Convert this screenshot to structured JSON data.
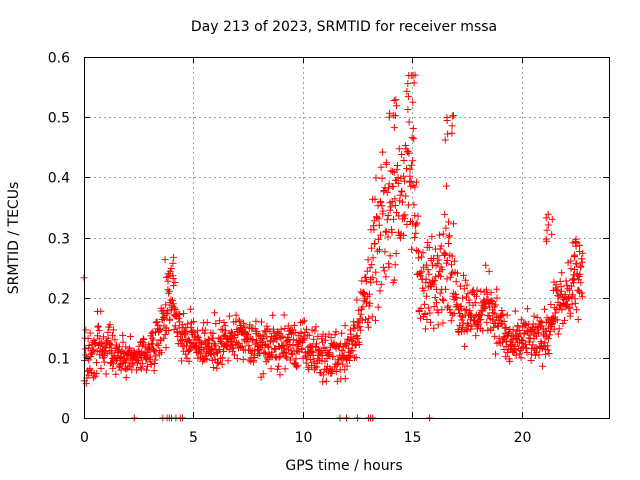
{
  "chart_data": {
    "type": "scatter",
    "title": "Day 213 of 2023, SRMTID for receiver mssa",
    "xlabel": "GPS time / hours",
    "ylabel": "SRMTID / TECUs",
    "xlim": [
      0,
      24
    ],
    "ylim": [
      0,
      0.6
    ],
    "xticks": [
      0,
      5,
      10,
      15,
      20
    ],
    "xtick_labels": [
      "0",
      "5",
      "10",
      "15",
      "20"
    ],
    "yticks": [
      0,
      0.1,
      0.2,
      0.3,
      0.4,
      0.5,
      0.6
    ],
    "ytick_labels": [
      "0",
      "0.1",
      "0.2",
      "0.3",
      "0.4",
      "0.5",
      "0.6"
    ],
    "grid": true,
    "marker": "+",
    "color": "#ff0000",
    "x_data_extent": [
      0,
      22.8
    ],
    "zero_values_x": [
      2.3,
      3.6,
      3.8,
      3.9,
      4.0,
      4.2,
      4.4,
      4.5,
      11.7,
      12.0,
      12.5,
      13.0,
      13.1,
      13.2,
      15.8
    ],
    "envelope": [
      {
        "x": 0.0,
        "median": 0.1,
        "spread": 0.05
      },
      {
        "x": 0.5,
        "median": 0.11,
        "spread": 0.06
      },
      {
        "x": 1.0,
        "median": 0.12,
        "spread": 0.06
      },
      {
        "x": 1.5,
        "median": 0.1,
        "spread": 0.04
      },
      {
        "x": 2.0,
        "median": 0.1,
        "spread": 0.04
      },
      {
        "x": 3.0,
        "median": 0.11,
        "spread": 0.04
      },
      {
        "x": 3.5,
        "median": 0.15,
        "spread": 0.05
      },
      {
        "x": 4.0,
        "median": 0.2,
        "spread": 0.07
      },
      {
        "x": 4.5,
        "median": 0.14,
        "spread": 0.05
      },
      {
        "x": 5.0,
        "median": 0.13,
        "spread": 0.05
      },
      {
        "x": 6.0,
        "median": 0.12,
        "spread": 0.05
      },
      {
        "x": 7.0,
        "median": 0.13,
        "spread": 0.05
      },
      {
        "x": 8.0,
        "median": 0.12,
        "spread": 0.05
      },
      {
        "x": 9.0,
        "median": 0.12,
        "spread": 0.05
      },
      {
        "x": 10.0,
        "median": 0.12,
        "spread": 0.05
      },
      {
        "x": 11.0,
        "median": 0.1,
        "spread": 0.05
      },
      {
        "x": 12.0,
        "median": 0.11,
        "spread": 0.05
      },
      {
        "x": 12.5,
        "median": 0.15,
        "spread": 0.06
      },
      {
        "x": 13.0,
        "median": 0.22,
        "spread": 0.1
      },
      {
        "x": 13.5,
        "median": 0.3,
        "spread": 0.14
      },
      {
        "x": 14.0,
        "median": 0.35,
        "spread": 0.15
      },
      {
        "x": 14.5,
        "median": 0.38,
        "spread": 0.15
      },
      {
        "x": 15.0,
        "median": 0.4,
        "spread": 0.16
      },
      {
        "x": 15.5,
        "median": 0.2,
        "spread": 0.1
      },
      {
        "x": 16.0,
        "median": 0.22,
        "spread": 0.1
      },
      {
        "x": 16.5,
        "median": 0.3,
        "spread": 0.14
      },
      {
        "x": 17.0,
        "median": 0.2,
        "spread": 0.08
      },
      {
        "x": 18.0,
        "median": 0.17,
        "spread": 0.06
      },
      {
        "x": 18.5,
        "median": 0.2,
        "spread": 0.07
      },
      {
        "x": 19.0,
        "median": 0.15,
        "spread": 0.06
      },
      {
        "x": 19.5,
        "median": 0.12,
        "spread": 0.05
      },
      {
        "x": 20.0,
        "median": 0.13,
        "spread": 0.05
      },
      {
        "x": 21.0,
        "median": 0.13,
        "spread": 0.05
      },
      {
        "x": 21.5,
        "median": 0.18,
        "spread": 0.06
      },
      {
        "x": 22.0,
        "median": 0.19,
        "spread": 0.06
      },
      {
        "x": 22.5,
        "median": 0.23,
        "spread": 0.07
      },
      {
        "x": 22.8,
        "median": 0.22,
        "spread": 0.06
      }
    ],
    "peaks": [
      {
        "x": 3.9,
        "y": 0.27
      },
      {
        "x": 14.1,
        "y": 0.53
      },
      {
        "x": 15.0,
        "y": 0.57
      },
      {
        "x": 16.7,
        "y": 0.51
      },
      {
        "x": 21.3,
        "y": 0.34
      },
      {
        "x": 22.5,
        "y": 0.31
      }
    ]
  }
}
